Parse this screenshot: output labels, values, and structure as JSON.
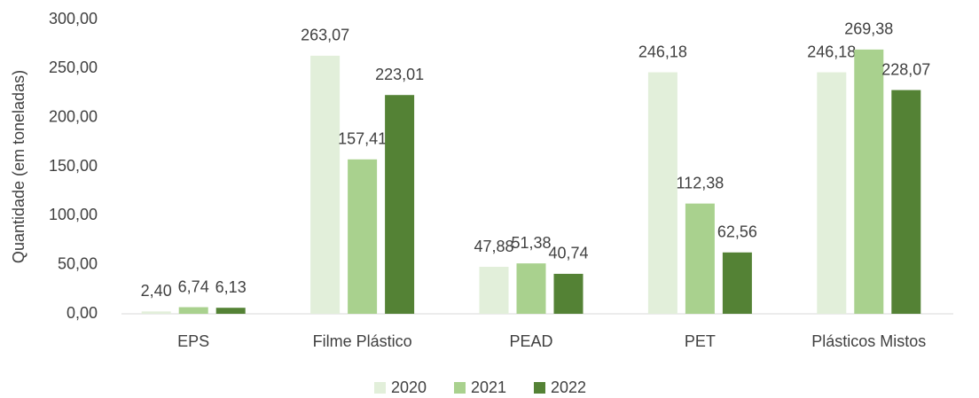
{
  "chart_data": {
    "type": "bar",
    "y_label": "Quantidade (em toneladas)",
    "categories": [
      "EPS",
      "Filme Plástico",
      "PEAD",
      "PET",
      "Plásticos Mistos"
    ],
    "series": [
      {
        "name": "2020",
        "color": "#e2efda",
        "values": [
          2.4,
          263.07,
          47.88,
          246.18,
          246.18
        ],
        "value_labels": [
          "2,40",
          "263,07",
          "47,88",
          "246,18",
          "246,18"
        ]
      },
      {
        "name": "2021",
        "color": "#a9d18e",
        "values": [
          6.74,
          157.41,
          51.38,
          112.38,
          269.38
        ],
        "value_labels": [
          "6,74",
          "157,41",
          "51,38",
          "112,38",
          "269,38"
        ]
      },
      {
        "name": "2022",
        "color": "#548235",
        "values": [
          6.13,
          223.01,
          40.74,
          62.56,
          228.07
        ],
        "value_labels": [
          "6,13",
          "223,01",
          "40,74",
          "62,56",
          "228,07"
        ]
      }
    ],
    "ylim": [
      0,
      300
    ],
    "yticks": [
      {
        "value": 0,
        "label": "0,00"
      },
      {
        "value": 50,
        "label": "50,00"
      },
      {
        "value": 100,
        "label": "100,00"
      },
      {
        "value": 150,
        "label": "150,00"
      },
      {
        "value": 200,
        "label": "200,00"
      },
      {
        "value": 250,
        "label": "250,00"
      },
      {
        "value": 300,
        "label": "300,00"
      }
    ],
    "grid": false,
    "legend": "bottom"
  }
}
